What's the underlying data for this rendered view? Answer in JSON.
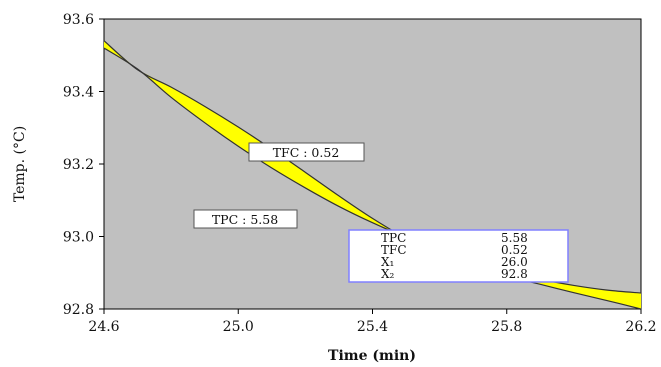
{
  "chart_data": {
    "type": "area",
    "xlabel": "Time (min)",
    "ylabel": "Temp. (°C)",
    "xlim": [
      24.6,
      26.2
    ],
    "ylim": [
      92.8,
      93.6
    ],
    "x_ticks": [
      "24.6",
      "25.0",
      "25.4",
      "25.8",
      "26.2"
    ],
    "y_ticks": [
      "92.8",
      "93.0",
      "93.2",
      "93.4",
      "93.6"
    ],
    "colors": {
      "plot_background": "#c0c0c0",
      "fill": "#ffff00",
      "line": "#333333",
      "table_border": "#8080ff"
    },
    "series": [
      {
        "x": [
          24.6,
          24.7,
          24.8,
          24.9,
          25.0,
          25.1,
          25.2,
          25.3,
          25.4,
          25.5,
          25.6,
          25.7,
          25.8,
          25.9,
          26.0,
          26.1,
          26.2
        ],
        "y": [
          93.52,
          93.462,
          93.384,
          93.314,
          93.249,
          93.189,
          93.134,
          93.083,
          93.038,
          92.998,
          92.962,
          92.931,
          92.904,
          92.882,
          92.865,
          92.852,
          92.844
        ]
      },
      {
        "x": [
          24.6,
          24.7,
          24.8,
          24.9,
          25.0,
          25.1,
          25.2,
          25.3,
          25.4,
          25.5,
          25.6,
          25.7,
          25.8,
          25.9,
          26.0,
          26.1,
          26.2
        ],
        "y": [
          93.54,
          93.46,
          93.412,
          93.359,
          93.302,
          93.241,
          93.177,
          93.112,
          93.05,
          92.995,
          92.95,
          92.915,
          92.89,
          92.868,
          92.845,
          92.823,
          92.8
        ]
      }
    ],
    "annotations": [
      {
        "text": "TFC : 0.52"
      },
      {
        "text": "TPC : 5.58"
      }
    ],
    "table": {
      "rows": [
        {
          "label": "TPC",
          "value": "5.58"
        },
        {
          "label": "TFC",
          "value": "0.52"
        },
        {
          "label": "X₁",
          "value": "26.0"
        },
        {
          "label": "X₂",
          "value": "92.8"
        }
      ]
    }
  }
}
